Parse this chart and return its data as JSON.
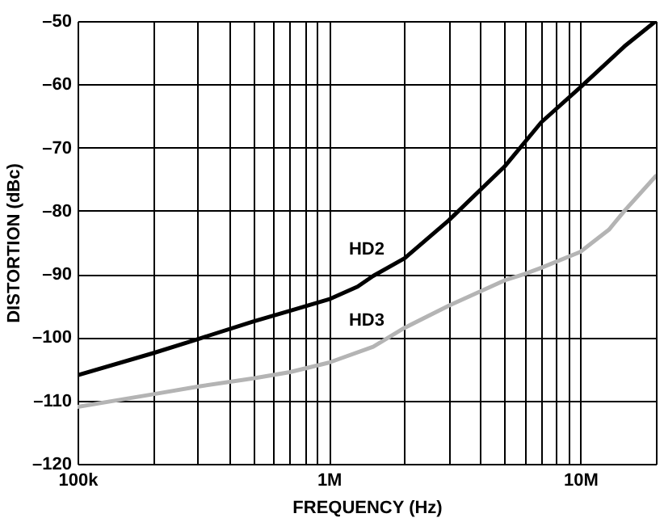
{
  "chart_data": {
    "type": "line",
    "xlabel": "FREQUENCY (Hz)",
    "ylabel": "DISTORTION  (dBc)",
    "log": "x",
    "grid": true,
    "marker": "none",
    "line_style": "solid",
    "xlim": [
      100000,
      20000000
    ],
    "xticks": [
      {
        "value": 100000,
        "label": "100k"
      },
      {
        "value": 200000,
        "label": null
      },
      {
        "value": 300000,
        "label": null
      },
      {
        "value": 400000,
        "label": null
      },
      {
        "value": 500000,
        "label": null
      },
      {
        "value": 600000,
        "label": null
      },
      {
        "value": 700000,
        "label": null
      },
      {
        "value": 800000,
        "label": null
      },
      {
        "value": 900000,
        "label": null
      },
      {
        "value": 1000000,
        "label": "1M"
      },
      {
        "value": 2000000,
        "label": null
      },
      {
        "value": 3000000,
        "label": null
      },
      {
        "value": 4000000,
        "label": null
      },
      {
        "value": 5000000,
        "label": null
      },
      {
        "value": 6000000,
        "label": null
      },
      {
        "value": 7000000,
        "label": null
      },
      {
        "value": 8000000,
        "label": null
      },
      {
        "value": 9000000,
        "label": null
      },
      {
        "value": 10000000,
        "label": "10M"
      },
      {
        "value": 20000000,
        "label": null
      }
    ],
    "ylim": [
      -120,
      -50
    ],
    "yticks": [
      {
        "value": -120,
        "label": "–120"
      },
      {
        "value": -110,
        "label": "–110"
      },
      {
        "value": -100,
        "label": "–100"
      },
      {
        "value": -90,
        "label": "–90"
      },
      {
        "value": -80,
        "label": "–80"
      },
      {
        "value": -70,
        "label": "–70"
      },
      {
        "value": -60,
        "label": "–60"
      },
      {
        "value": -50,
        "label": "–50"
      }
    ],
    "series": [
      {
        "name": "HD2",
        "color": "#000000",
        "x": [
          100000,
          200000,
          300000,
          500000,
          700000,
          1000000,
          1300000,
          1500000,
          2000000,
          3000000,
          5000000,
          7000000,
          10000000,
          15000000,
          20000000
        ],
        "values": [
          -106,
          -102.5,
          -100.3,
          -97.5,
          -95.8,
          -94,
          -92,
          -90.3,
          -87.5,
          -81.5,
          -73,
          -66,
          -60.5,
          -54,
          -50
        ]
      },
      {
        "name": "HD3",
        "color": "#b4b4b4",
        "x": [
          100000,
          200000,
          300000,
          500000,
          700000,
          1000000,
          1500000,
          2000000,
          3000000,
          5000000,
          6000000,
          7000000,
          10000000,
          13000000,
          15000000,
          20000000
        ],
        "values": [
          -111,
          -109,
          -107.8,
          -106.5,
          -105.5,
          -104,
          -101.5,
          -98.5,
          -95,
          -91,
          -90,
          -89,
          -86.5,
          -83,
          -80,
          -74.5
        ]
      }
    ]
  }
}
